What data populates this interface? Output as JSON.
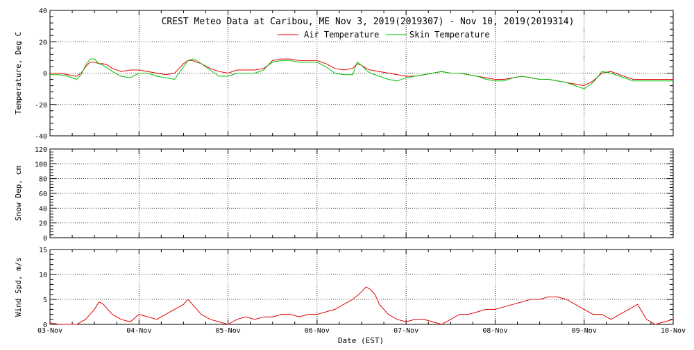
{
  "title": "CREST Meteo Data at Caribou, ME   Nov  3, 2019(2019307) - Nov 10, 2019(2019314)",
  "xlabel": "Date (EST)",
  "x_ticks": [
    "03-Nov",
    "04-Nov",
    "05-Nov",
    "06-Nov",
    "07-Nov",
    "08-Nov",
    "09-Nov",
    "10-Nov"
  ],
  "legend": {
    "air": "Air Temperature",
    "skin": "Skin Temperature"
  },
  "colors": {
    "air": "#e00000",
    "skin": "#00c000",
    "wind": "#e00000",
    "axis": "#000000"
  },
  "chart_data": [
    {
      "type": "line",
      "ylabel": "Temperature, Deg C",
      "xlim": [
        0,
        7
      ],
      "ylim": [
        -40,
        40
      ],
      "y_ticks": [
        "-40",
        "-20",
        "0",
        "20",
        "40"
      ],
      "grid": true,
      "legend_position": "top-center",
      "series": [
        {
          "name": "Air Temperature",
          "x": [
            0,
            0.1,
            0.2,
            0.3,
            0.35,
            0.4,
            0.45,
            0.5,
            0.55,
            0.6,
            0.65,
            0.7,
            0.8,
            0.9,
            1.0,
            1.1,
            1.2,
            1.3,
            1.4,
            1.5,
            1.55,
            1.6,
            1.65,
            1.7,
            1.8,
            1.9,
            2.0,
            2.1,
            2.2,
            2.3,
            2.4,
            2.45,
            2.5,
            2.6,
            2.7,
            2.8,
            2.9,
            3.0,
            3.1,
            3.2,
            3.3,
            3.4,
            3.45,
            3.5,
            3.55,
            3.6,
            3.7,
            3.8,
            3.9,
            4.0,
            4.1,
            4.2,
            4.3,
            4.4,
            4.5,
            4.6,
            4.7,
            4.8,
            4.9,
            5.0,
            5.1,
            5.2,
            5.3,
            5.4,
            5.5,
            5.6,
            5.7,
            5.8,
            5.9,
            6.0,
            6.1,
            6.2,
            6.3,
            6.4,
            6.5,
            6.55,
            6.6,
            6.7,
            6.8,
            6.9,
            7.0
          ],
          "y": [
            0,
            0,
            -1,
            -2,
            0,
            4,
            7,
            7,
            6,
            6,
            5,
            3,
            1,
            2,
            2,
            1,
            0,
            -1,
            0,
            6,
            8,
            8,
            7,
            6,
            3,
            1,
            0,
            2,
            2,
            2,
            3,
            5,
            8,
            9,
            9,
            8,
            8,
            8,
            6,
            3,
            2,
            3,
            6,
            5,
            3,
            2,
            1,
            0,
            -1,
            -2,
            -2,
            -1,
            0,
            1,
            0,
            0,
            -1,
            -2,
            -3,
            -4,
            -4,
            -3,
            -2,
            -3,
            -4,
            -4,
            -5,
            -6,
            -7,
            -8,
            -5,
            0,
            1,
            -1,
            -3,
            -4,
            -4,
            -4,
            -4,
            -4,
            -4
          ]
        },
        {
          "name": "Skin Temperature",
          "x": [
            0,
            0.1,
            0.2,
            0.3,
            0.35,
            0.4,
            0.45,
            0.5,
            0.55,
            0.6,
            0.65,
            0.7,
            0.8,
            0.9,
            1.0,
            1.1,
            1.2,
            1.3,
            1.4,
            1.5,
            1.55,
            1.6,
            1.65,
            1.7,
            1.8,
            1.9,
            2.0,
            2.1,
            2.2,
            2.3,
            2.4,
            2.45,
            2.5,
            2.6,
            2.7,
            2.8,
            2.9,
            3.0,
            3.1,
            3.2,
            3.3,
            3.4,
            3.45,
            3.5,
            3.55,
            3.6,
            3.7,
            3.8,
            3.9,
            4.0,
            4.1,
            4.2,
            4.3,
            4.4,
            4.5,
            4.6,
            4.7,
            4.8,
            4.9,
            5.0,
            5.1,
            5.2,
            5.3,
            5.4,
            5.5,
            5.6,
            5.7,
            5.8,
            5.9,
            6.0,
            6.1,
            6.2,
            6.3,
            6.4,
            6.5,
            6.55,
            6.6,
            6.7,
            6.8,
            6.9,
            7.0
          ],
          "y": [
            -1,
            -1,
            -2,
            -4,
            -1,
            5,
            9,
            9,
            6,
            5,
            3,
            1,
            -2,
            -3,
            0,
            0,
            -2,
            -3,
            -4,
            4,
            8,
            9,
            8,
            6,
            2,
            -2,
            -2,
            0,
            0,
            0,
            2,
            5,
            7,
            8,
            8,
            7,
            7,
            7,
            4,
            0,
            -1,
            -1,
            7,
            5,
            2,
            0,
            -2,
            -4,
            -5,
            -3,
            -2,
            -1,
            0,
            1,
            0,
            0,
            -1,
            -2,
            -4,
            -5,
            -5,
            -3,
            -2,
            -3,
            -4,
            -4,
            -5,
            -6,
            -8,
            -10,
            -6,
            1,
            0,
            -2,
            -4,
            -5,
            -5,
            -5,
            -5,
            -5,
            -5
          ]
        }
      ]
    },
    {
      "type": "line",
      "ylabel": "Snow Dep, cm",
      "xlim": [
        0,
        7
      ],
      "ylim": [
        0,
        120
      ],
      "y_ticks": [
        "0",
        "20",
        "40",
        "60",
        "80",
        "100",
        "120"
      ],
      "grid": true,
      "series": []
    },
    {
      "type": "line",
      "ylabel": "Wind Spd, m/s",
      "xlim": [
        0,
        7
      ],
      "ylim": [
        0,
        15
      ],
      "y_ticks": [
        "0",
        "5",
        "10",
        "15"
      ],
      "grid": true,
      "series": [
        {
          "name": "",
          "x": [
            0,
            0.1,
            0.2,
            0.3,
            0.4,
            0.5,
            0.55,
            0.6,
            0.65,
            0.7,
            0.8,
            0.9,
            1.0,
            1.1,
            1.2,
            1.3,
            1.4,
            1.5,
            1.55,
            1.6,
            1.7,
            1.8,
            1.9,
            2.0,
            2.1,
            2.2,
            2.3,
            2.4,
            2.5,
            2.6,
            2.7,
            2.8,
            2.9,
            3.0,
            3.1,
            3.2,
            3.3,
            3.4,
            3.5,
            3.55,
            3.6,
            3.65,
            3.7,
            3.8,
            3.9,
            4.0,
            4.1,
            4.2,
            4.3,
            4.4,
            4.5,
            4.6,
            4.7,
            4.8,
            4.9,
            5.0,
            5.1,
            5.2,
            5.3,
            5.4,
            5.5,
            5.6,
            5.7,
            5.8,
            5.9,
            6.0,
            6.1,
            6.2,
            6.3,
            6.4,
            6.5,
            6.6,
            6.7,
            6.8,
            6.9,
            7.0
          ],
          "y": [
            0.3,
            0,
            0,
            0,
            1,
            3,
            4.5,
            4,
            3,
            2,
            1,
            0.5,
            2,
            1.5,
            1,
            2,
            3,
            4,
            5,
            4,
            2,
            1,
            0.5,
            0,
            1,
            1.5,
            1,
            1.5,
            1.5,
            2,
            2,
            1.5,
            2,
            2,
            2.5,
            3,
            4,
            5,
            6.5,
            7.5,
            7,
            6,
            4,
            2,
            1,
            0.5,
            1,
            1,
            0.5,
            0,
            1,
            2,
            2,
            2.5,
            3,
            3,
            3.5,
            4,
            4.5,
            5,
            5,
            5.5,
            5.5,
            5,
            4,
            3,
            2,
            2,
            1,
            2,
            3,
            4,
            1,
            0,
            0.5,
            1
          ]
        }
      ]
    }
  ]
}
